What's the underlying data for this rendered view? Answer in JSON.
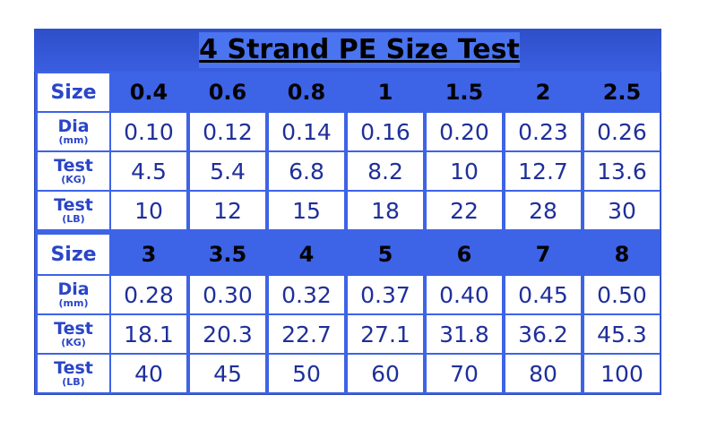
{
  "title": "4 Strand PE Size Test",
  "blocks": [
    {
      "header": {
        "label": "Size",
        "values": [
          "0.4",
          "0.6",
          "0.8",
          "1",
          "1.5",
          "2",
          "2.5"
        ]
      },
      "rows": [
        {
          "label": "Dia",
          "unit": "(mm)",
          "values": [
            "0.10",
            "0.12",
            "0.14",
            "0.16",
            "0.20",
            "0.23",
            "0.26"
          ]
        },
        {
          "label": "Test",
          "unit": "(KG)",
          "values": [
            "4.5",
            "5.4",
            "6.8",
            "8.2",
            "10",
            "12.7",
            "13.6"
          ]
        },
        {
          "label": "Test",
          "unit": "(LB)",
          "values": [
            "10",
            "12",
            "15",
            "18",
            "22",
            "28",
            "30"
          ]
        }
      ]
    },
    {
      "header": {
        "label": "Size",
        "values": [
          "3",
          "3.5",
          "4",
          "5",
          "6",
          "7",
          "8"
        ]
      },
      "rows": [
        {
          "label": "Dia",
          "unit": "(mm)",
          "values": [
            "0.28",
            "0.30",
            "0.32",
            "0.37",
            "0.40",
            "0.45",
            "0.50"
          ]
        },
        {
          "label": "Test",
          "unit": "(KG)",
          "values": [
            "18.1",
            "20.3",
            "22.7",
            "27.1",
            "31.8",
            "36.2",
            "45.3"
          ]
        },
        {
          "label": "Test",
          "unit": "(LB)",
          "values": [
            "40",
            "45",
            "50",
            "60",
            "70",
            "80",
            "100"
          ]
        }
      ]
    }
  ]
}
